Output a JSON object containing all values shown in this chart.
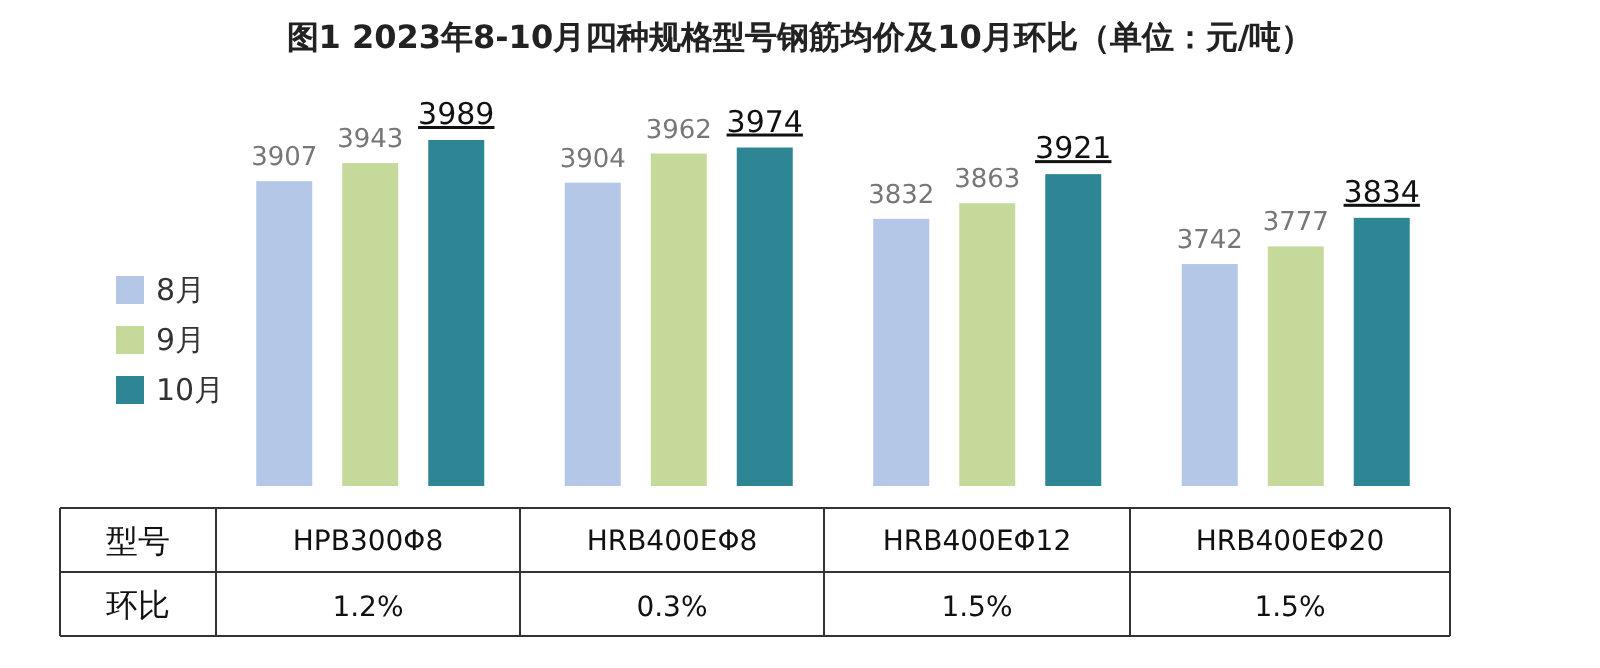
{
  "chart_data": {
    "type": "bar",
    "title": "图1 2023年8-10月四种规格型号钢筋均价及10月环比（单位：元/吨）",
    "xlabel": "型号",
    "categories": [
      "HPB300Φ8",
      "HRB400EΦ8",
      "HRB400EΦ12",
      "HRB400EΦ20"
    ],
    "series": [
      {
        "name": "8月",
        "color": "#b4c7e7",
        "values": [
          3907,
          3904,
          3832,
          3742
        ]
      },
      {
        "name": "9月",
        "color": "#c5d99a",
        "values": [
          3943,
          3962,
          3863,
          3777
        ]
      },
      {
        "name": "10月",
        "color": "#2e8594",
        "values": [
          3989,
          3974,
          3921,
          3834
        ]
      }
    ],
    "ylim": [
      3300,
      3989
    ],
    "data_labels": true,
    "legend": "left",
    "annotations": [
      "环比",
      "1.2%",
      "0.3%",
      "1.5%",
      "1.5%"
    ]
  }
}
